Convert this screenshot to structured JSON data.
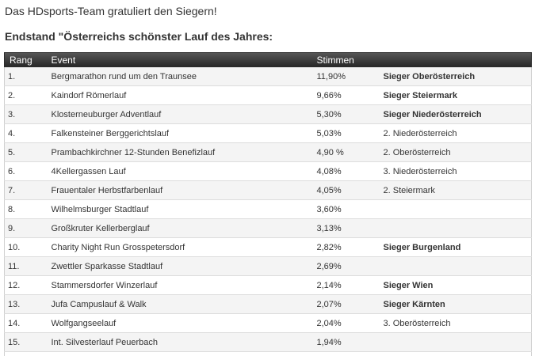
{
  "intro": "Das HDsports-Team gratuliert den Siegern!",
  "heading": "Endstand \"Österreichs schönster Lauf des Jahres:",
  "table": {
    "headers": [
      "Rang",
      "Event",
      "Stimmen",
      ""
    ],
    "rows": [
      {
        "rang": "1.",
        "event": "Bergmarathon rund um den Traunsee",
        "pct": "11,90%",
        "note": "Sieger Oberösterreich",
        "bold": true
      },
      {
        "rang": "2.",
        "event": "Kaindorf Römerlauf",
        "pct": "9,66%",
        "note": "Sieger Steiermark",
        "bold": true
      },
      {
        "rang": "3.",
        "event": "Klosterneuburger Adventlauf",
        "pct": "5,30%",
        "note": "Sieger Niederösterreich",
        "bold": true
      },
      {
        "rang": "4.",
        "event": "Falkensteiner Berggerichtslauf",
        "pct": "5,03%",
        "note": "2. Niederösterreich",
        "bold": false
      },
      {
        "rang": "5.",
        "event": "Prambachkirchner 12-Stunden Benefizlauf",
        "pct": "4,90 %",
        "note": "2. Oberösterreich",
        "bold": false
      },
      {
        "rang": "6.",
        "event": "4Kellergassen Lauf",
        "pct": "4,08%",
        "note": "3. Niederösterreich",
        "bold": false
      },
      {
        "rang": "7.",
        "event": "Frauentaler Herbstfarbenlauf",
        "pct": "4,05%",
        "note": "2. Steiermark",
        "bold": false
      },
      {
        "rang": "8.",
        "event": "Wilhelmsburger Stadtlauf",
        "pct": "3,60%",
        "note": "",
        "bold": false
      },
      {
        "rang": "9.",
        "event": "Großkruter Kellerberglauf",
        "pct": "3,13%",
        "note": "",
        "bold": false
      },
      {
        "rang": "10.",
        "event": "Charity Night Run Grosspetersdorf",
        "pct": "2,82%",
        "note": "Sieger Burgenland",
        "bold": true
      },
      {
        "rang": "11.",
        "event": "Zwettler Sparkasse Stadtlauf",
        "pct": "2,69%",
        "note": "",
        "bold": false
      },
      {
        "rang": "12.",
        "event": "Stammersdorfer Winzerlauf",
        "pct": "2,14%",
        "note": "Sieger Wien",
        "bold": true
      },
      {
        "rang": "13.",
        "event": "Jufa Campuslauf & Walk",
        "pct": "2,07%",
        "note": "Sieger Kärnten",
        "bold": true
      },
      {
        "rang": "14.",
        "event": "Wolfgangseelauf",
        "pct": "2,04%",
        "note": "3. Oberösterreich",
        "bold": false
      },
      {
        "rang": "15.",
        "event": "Int. Silvesterlauf Peuerbach",
        "pct": "1,94%",
        "note": "",
        "bold": false
      },
      {
        "rang": "",
        "event": "",
        "pct": "",
        "note": "",
        "bold": false
      }
    ]
  }
}
